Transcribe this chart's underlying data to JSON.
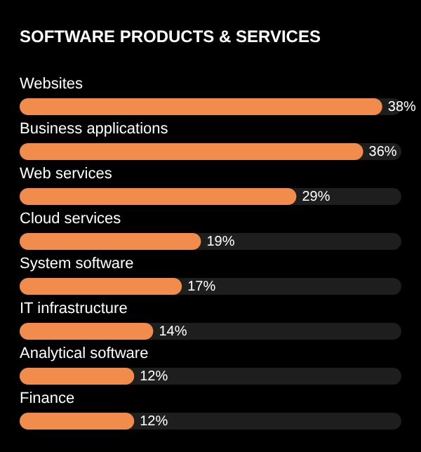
{
  "chart_data": {
    "type": "bar",
    "orientation": "horizontal",
    "title": "SOFTWARE PRODUCTS & SERVICES",
    "categories": [
      "Websites",
      "Business applications",
      "Web services",
      "Cloud services",
      "System software",
      "IT infrastructure",
      "Analytical software",
      "Finance"
    ],
    "values": [
      38,
      36,
      29,
      19,
      17,
      14,
      12,
      12
    ],
    "value_labels": [
      "38%",
      "36%",
      "29%",
      "19%",
      "17%",
      "14%",
      "12%",
      "12%"
    ],
    "color": "#f28c4c",
    "tick_labels": false
  }
}
